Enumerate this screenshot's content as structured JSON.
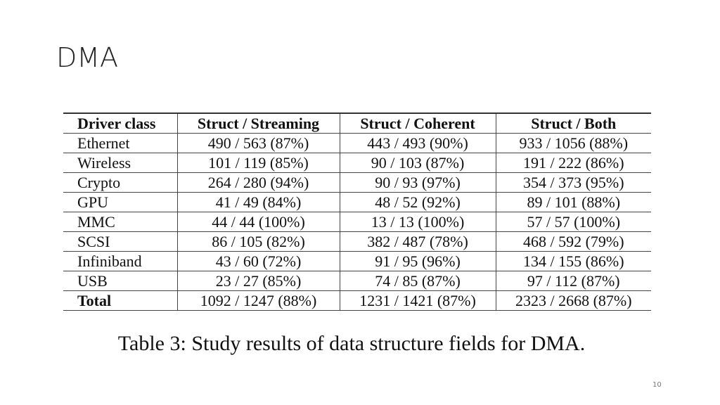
{
  "slide": {
    "title": "DMA",
    "page_number": "10"
  },
  "table": {
    "header": [
      "Driver class",
      "Struct / Streaming",
      "Struct / Coherent",
      "Struct / Both"
    ],
    "rows": [
      [
        "Ethernet",
        "490 / 563 (87%)",
        "443 / 493 (90%)",
        "933 / 1056 (88%)"
      ],
      [
        "Wireless",
        "101 / 119 (85%)",
        "90 / 103 (87%)",
        "191 / 222 (86%)"
      ],
      [
        "Crypto",
        "264 / 280 (94%)",
        "90 / 93 (97%)",
        "354 / 373 (95%)"
      ],
      [
        "GPU",
        "41 / 49 (84%)",
        "48 / 52 (92%)",
        "89 / 101 (88%)"
      ],
      [
        "MMC",
        "44 / 44 (100%)",
        "13 / 13 (100%)",
        "57 / 57 (100%)"
      ],
      [
        "SCSI",
        "86 / 105 (82%)",
        "382 / 487 (78%)",
        "468 / 592 (79%)"
      ],
      [
        "Infiniband",
        "43 / 60 (72%)",
        "91 / 95 (96%)",
        "134 / 155 (86%)"
      ],
      [
        "USB",
        "23 / 27 (85%)",
        "74 / 85 (87%)",
        "97 / 112 (87%)"
      ],
      [
        "Total",
        "1092 / 1247 (88%)",
        "1231 / 1421 (87%)",
        "2323 / 2668 (87%)"
      ]
    ],
    "caption": "Table 3: Study results of data structure fields for DMA."
  }
}
